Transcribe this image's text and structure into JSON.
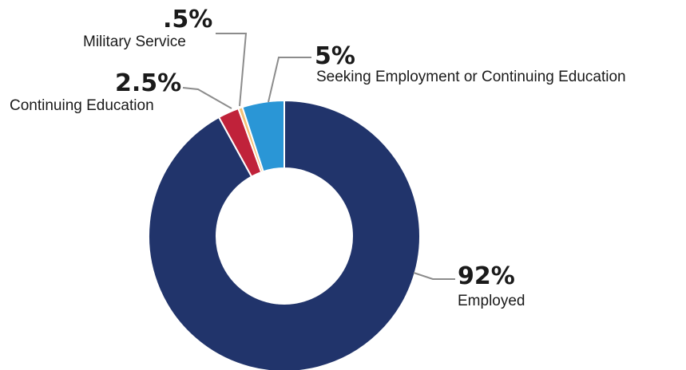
{
  "chart_data": {
    "type": "pie",
    "donut": true,
    "start": "top",
    "direction": "clockwise",
    "categories": [
      "Employed",
      "Continuing Education",
      "Military Service",
      "Seeking Employment or Continuing Education"
    ],
    "values": [
      92,
      2.5,
      0.5,
      5
    ],
    "value_labels": [
      "92%",
      "2.5%",
      ".5%",
      "5%"
    ],
    "colors": [
      "#21346b",
      "#c0223a",
      "#f4c074",
      "#2a96d6"
    ],
    "legend": "none"
  }
}
